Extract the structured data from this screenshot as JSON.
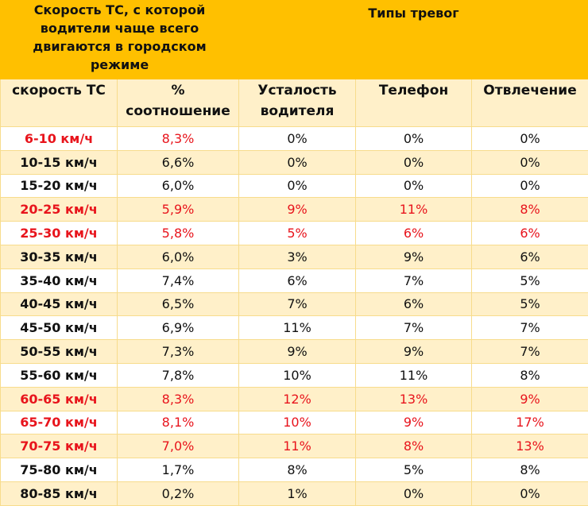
{
  "header": {
    "speed_group": "Скорость ТС, с которой водители чаще всего двигаются в городском режиме",
    "alerts_group": "Типы тревог",
    "columns": [
      "скорость ТС",
      "% соотношение",
      "Усталость водителя",
      "Телефон",
      "Отвлечение"
    ]
  },
  "colors": {
    "header": "#ffc000",
    "stripe": "#fff0c9",
    "highlight": "#e8141c"
  },
  "rows": [
    {
      "cells": [
        "6-10 км/ч",
        "8,3%",
        "0%",
        "0%",
        "0%"
      ],
      "red": [
        true,
        true,
        false,
        false,
        false
      ]
    },
    {
      "cells": [
        "10-15 км/ч",
        "6,6%",
        "0%",
        "0%",
        "0%"
      ],
      "red": [
        false,
        false,
        false,
        false,
        false
      ]
    },
    {
      "cells": [
        "15-20 км/ч",
        "6,0%",
        "0%",
        "0%",
        "0%"
      ],
      "red": [
        false,
        false,
        false,
        false,
        false
      ]
    },
    {
      "cells": [
        "20-25 км/ч",
        "5,9%",
        "9%",
        "11%",
        "8%"
      ],
      "red": [
        true,
        true,
        true,
        true,
        true
      ]
    },
    {
      "cells": [
        "25-30 км/ч",
        "5,8%",
        "5%",
        "6%",
        "6%"
      ],
      "red": [
        true,
        true,
        true,
        true,
        true
      ]
    },
    {
      "cells": [
        "30-35 км/ч",
        "6,0%",
        "3%",
        "9%",
        "6%"
      ],
      "red": [
        false,
        false,
        false,
        false,
        false
      ]
    },
    {
      "cells": [
        "35-40 км/ч",
        "7,4%",
        "6%",
        "7%",
        "5%"
      ],
      "red": [
        false,
        false,
        false,
        false,
        false
      ]
    },
    {
      "cells": [
        "40-45 км/ч",
        "6,5%",
        "7%",
        "6%",
        "5%"
      ],
      "red": [
        false,
        false,
        false,
        false,
        false
      ]
    },
    {
      "cells": [
        "45-50 км/ч",
        "6,9%",
        "11%",
        "7%",
        "7%"
      ],
      "red": [
        false,
        false,
        false,
        false,
        false
      ]
    },
    {
      "cells": [
        "50-55 км/ч",
        "7,3%",
        "9%",
        "9%",
        "7%"
      ],
      "red": [
        false,
        false,
        false,
        false,
        false
      ]
    },
    {
      "cells": [
        "55-60 км/ч",
        "7,8%",
        "10%",
        "11%",
        "8%"
      ],
      "red": [
        false,
        false,
        false,
        false,
        false
      ]
    },
    {
      "cells": [
        "60-65 км/ч",
        "8,3%",
        "12%",
        "13%",
        "9%"
      ],
      "red": [
        true,
        true,
        true,
        true,
        true
      ]
    },
    {
      "cells": [
        "65-70 км/ч",
        "8,1%",
        "10%",
        "9%",
        "17%"
      ],
      "red": [
        true,
        true,
        true,
        true,
        true
      ]
    },
    {
      "cells": [
        "70-75 км/ч",
        "7,0%",
        "11%",
        "8%",
        "13%"
      ],
      "red": [
        true,
        true,
        true,
        true,
        true
      ]
    },
    {
      "cells": [
        "75-80 км/ч",
        "1,7%",
        "8%",
        "5%",
        "8%"
      ],
      "red": [
        false,
        false,
        false,
        false,
        false
      ]
    },
    {
      "cells": [
        "80-85 км/ч",
        "0,2%",
        "1%",
        "0%",
        "0%"
      ],
      "red": [
        false,
        false,
        false,
        false,
        false
      ]
    }
  ]
}
